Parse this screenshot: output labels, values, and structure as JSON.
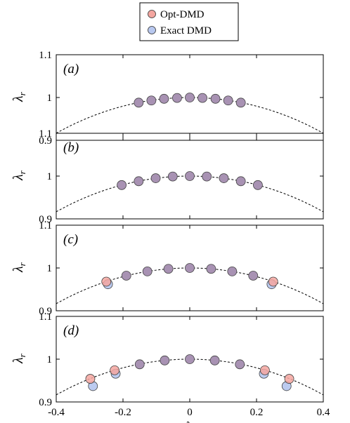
{
  "colors": {
    "opt": "#f4a6a0",
    "exact": "#b8c8ef",
    "overlap": "#a892b3",
    "curve": "#000000"
  },
  "legend": {
    "items": [
      {
        "label": "Opt-DMD",
        "color": "#f4a6a0"
      },
      {
        "label": "Exact DMD",
        "color": "#b8c8ef"
      }
    ]
  },
  "chart_data": {
    "type": "scatter",
    "xlabel_symbol": "λ",
    "xlabel_sub": "i",
    "ylabel_symbol": "λ",
    "ylabel_sub": "r",
    "xlim": [
      -0.4,
      0.4
    ],
    "ylim": [
      0.9,
      1.1
    ],
    "x_ticks": [
      -0.4,
      -0.2,
      0,
      0.2,
      0.4
    ],
    "x_tick_labels": [
      "-0.4",
      "-0.2",
      "0",
      "0.2",
      "0.4"
    ],
    "y_ticks": [
      0.9,
      1,
      1.1
    ],
    "y_tick_labels": [
      "0.9",
      "1",
      "1.1"
    ],
    "reference_curve": "unit circle, dashed",
    "legend_position": "top-center",
    "panels": [
      {
        "label": "(a)",
        "series": [
          {
            "name": "Opt-DMD",
            "points": [
              [
                -0.153,
                0.988
              ],
              [
                -0.115,
                0.993
              ],
              [
                -0.077,
                0.997
              ],
              [
                -0.038,
                0.999
              ],
              [
                0,
                1
              ],
              [
                0.038,
                0.999
              ],
              [
                0.077,
                0.997
              ],
              [
                0.115,
                0.993
              ],
              [
                0.153,
                0.988
              ]
            ]
          },
          {
            "name": "Exact DMD",
            "points": [
              [
                -0.153,
                0.988
              ],
              [
                -0.115,
                0.993
              ],
              [
                -0.077,
                0.997
              ],
              [
                -0.038,
                0.999
              ],
              [
                0,
                1
              ],
              [
                0.038,
                0.999
              ],
              [
                0.077,
                0.997
              ],
              [
                0.115,
                0.993
              ],
              [
                0.153,
                0.988
              ]
            ]
          }
        ]
      },
      {
        "label": "(b)",
        "series": [
          {
            "name": "Opt-DMD",
            "points": [
              [
                -0.204,
                0.979
              ],
              [
                -0.153,
                0.988
              ],
              [
                -0.102,
                0.995
              ],
              [
                -0.051,
                0.999
              ],
              [
                0,
                1
              ],
              [
                0.051,
                0.999
              ],
              [
                0.102,
                0.995
              ],
              [
                0.153,
                0.988
              ],
              [
                0.204,
                0.979
              ]
            ]
          },
          {
            "name": "Exact DMD",
            "points": [
              [
                -0.204,
                0.979
              ],
              [
                -0.153,
                0.988
              ],
              [
                -0.102,
                0.995
              ],
              [
                -0.051,
                0.999
              ],
              [
                0,
                1
              ],
              [
                0.051,
                0.999
              ],
              [
                0.102,
                0.995
              ],
              [
                0.153,
                0.988
              ],
              [
                0.204,
                0.979
              ]
            ]
          }
        ]
      },
      {
        "label": "(c)",
        "series": [
          {
            "name": "Opt-DMD",
            "points": [
              [
                -0.25,
                0.968
              ],
              [
                -0.19,
                0.982
              ],
              [
                -0.127,
                0.992
              ],
              [
                -0.064,
                0.998
              ],
              [
                0,
                1
              ],
              [
                0.064,
                0.998
              ],
              [
                0.127,
                0.992
              ],
              [
                0.19,
                0.982
              ],
              [
                0.25,
                0.968
              ]
            ]
          },
          {
            "name": "Exact DMD",
            "points": [
              [
                -0.245,
                0.962
              ],
              [
                -0.19,
                0.982
              ],
              [
                -0.127,
                0.992
              ],
              [
                -0.064,
                0.998
              ],
              [
                0,
                1
              ],
              [
                0.064,
                0.998
              ],
              [
                0.127,
                0.992
              ],
              [
                0.19,
                0.982
              ],
              [
                0.245,
                0.962
              ]
            ]
          }
        ]
      },
      {
        "label": "(d)",
        "series": [
          {
            "name": "Opt-DMD",
            "points": [
              [
                -0.298,
                0.954
              ],
              [
                -0.225,
                0.974
              ],
              [
                -0.15,
                0.988
              ],
              [
                -0.075,
                0.997
              ],
              [
                0,
                1
              ],
              [
                0.075,
                0.997
              ],
              [
                0.15,
                0.988
              ],
              [
                0.225,
                0.974
              ],
              [
                0.298,
                0.954
              ]
            ]
          },
          {
            "name": "Exact DMD",
            "points": [
              [
                -0.29,
                0.937
              ],
              [
                -0.222,
                0.966
              ],
              [
                -0.15,
                0.988
              ],
              [
                -0.075,
                0.997
              ],
              [
                0,
                1
              ],
              [
                0.075,
                0.997
              ],
              [
                0.15,
                0.988
              ],
              [
                0.222,
                0.966
              ],
              [
                0.29,
                0.937
              ]
            ]
          }
        ]
      }
    ]
  }
}
